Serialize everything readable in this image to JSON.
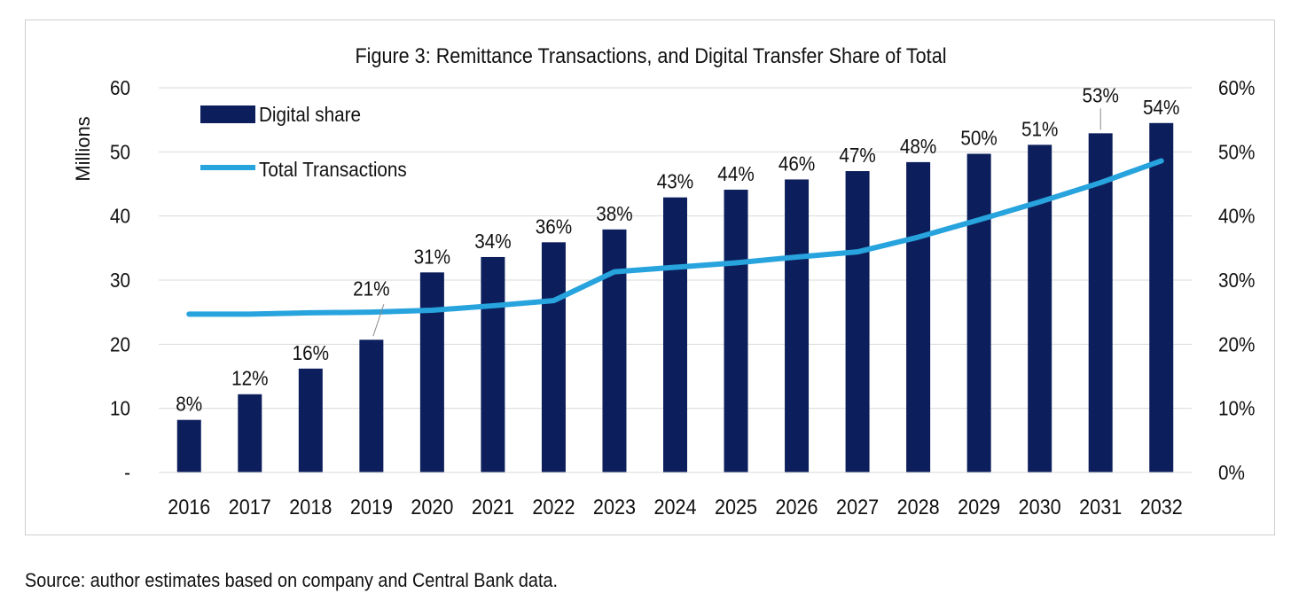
{
  "chart_data": {
    "type": "bar",
    "title": "Figure 3: Remittance Transactions, and Digital Transfer Share of Total",
    "ylabel": "Millions",
    "categories": [
      "2016",
      "2017",
      "2018",
      "2019",
      "2020",
      "2021",
      "2022",
      "2023",
      "2024",
      "2025",
      "2026",
      "2027",
      "2028",
      "2029",
      "2030",
      "2031",
      "2032"
    ],
    "series": [
      {
        "name": "Digital share",
        "kind": "bar",
        "axis": "left",
        "values": [
          8.2,
          12.2,
          16.2,
          20.7,
          31.2,
          33.6,
          35.9,
          37.9,
          42.9,
          44.1,
          45.7,
          47.0,
          48.4,
          49.7,
          51.1,
          52.9,
          54.5
        ],
        "data_labels": [
          "8%",
          "12%",
          "16%",
          "21%",
          "31%",
          "34%",
          "36%",
          "38%",
          "43%",
          "44%",
          "46%",
          "47%",
          "48%",
          "50%",
          "51%",
          "53%",
          "54%"
        ]
      },
      {
        "name": "Total Transactions",
        "kind": "line",
        "axis": "left",
        "values": [
          24.7,
          24.7,
          24.9,
          25.0,
          25.3,
          26.0,
          26.8,
          31.3,
          32.0,
          32.7,
          33.6,
          34.4,
          36.7,
          39.4,
          42.2,
          45.2,
          48.6
        ]
      }
    ],
    "y_left": {
      "ylim": [
        0,
        60
      ],
      "ticks": [
        "-",
        "10",
        "20",
        "30",
        "40",
        "50",
        "60"
      ]
    },
    "y_right": {
      "ylim": [
        0,
        60
      ],
      "ticks": [
        "0%",
        "10%",
        "20%",
        "30%",
        "40%",
        "50%",
        "60%"
      ]
    },
    "grid": true,
    "legend_position": "top-left",
    "colors": {
      "bar": "#0c1f5c",
      "line": "#27a3dd",
      "grid": "#d9d9d9"
    }
  },
  "source_note": "Source: author estimates based on company and Central Bank data."
}
